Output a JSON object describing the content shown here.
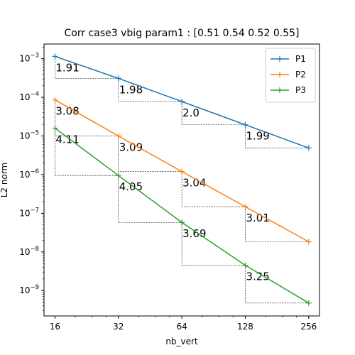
{
  "chart_data": {
    "type": "line",
    "title": "Corr case3 vbig param1 : [0.51 0.54 0.52 0.55]",
    "xlabel": "nb_vert",
    "ylabel": "L2 norm",
    "x_scale": "log2",
    "y_scale": "log10",
    "x": [
      16,
      32,
      64,
      128,
      256
    ],
    "xlim": [
      14.2,
      288
    ],
    "ylim": [
      2.2e-10,
      0.0024
    ],
    "x_ticks": [
      "16",
      "32",
      "64",
      "128",
      "256"
    ],
    "y_ticks": [
      {
        "mantissa": "10",
        "exponent": "−9",
        "value": 1e-09
      },
      {
        "mantissa": "10",
        "exponent": "−8",
        "value": 1e-08
      },
      {
        "mantissa": "10",
        "exponent": "−7",
        "value": 1e-07
      },
      {
        "mantissa": "10",
        "exponent": "−6",
        "value": 1e-06
      },
      {
        "mantissa": "10",
        "exponent": "−5",
        "value": 1e-05
      },
      {
        "mantissa": "10",
        "exponent": "−4",
        "value": 0.0001
      },
      {
        "mantissa": "10",
        "exponent": "−3",
        "value": 0.001
      }
    ],
    "legend_position": "top-right",
    "grid": false,
    "series": [
      {
        "name": "P1",
        "color": "#1f77b4",
        "values": [
          0.00115,
          0.00031,
          7.8e-05,
          1.95e-05,
          4.9e-06
        ],
        "slopes": [
          "1.91",
          "1.98",
          "2.0",
          "1.99"
        ]
      },
      {
        "name": "P2",
        "color": "#ff7f0e",
        "values": [
          8.6e-05,
          1e-05,
          1.2e-06,
          1.48e-07,
          1.83e-08
        ],
        "slopes": [
          "3.08",
          "3.09",
          "3.04",
          "3.01"
        ]
      },
      {
        "name": "P3",
        "color": "#2ca02c",
        "values": [
          1.6e-05,
          9.5e-07,
          5.8e-08,
          4.5e-09,
          4.75e-10
        ],
        "slopes": [
          "4.11",
          "4.05",
          "3.69",
          "3.25"
        ]
      }
    ]
  }
}
